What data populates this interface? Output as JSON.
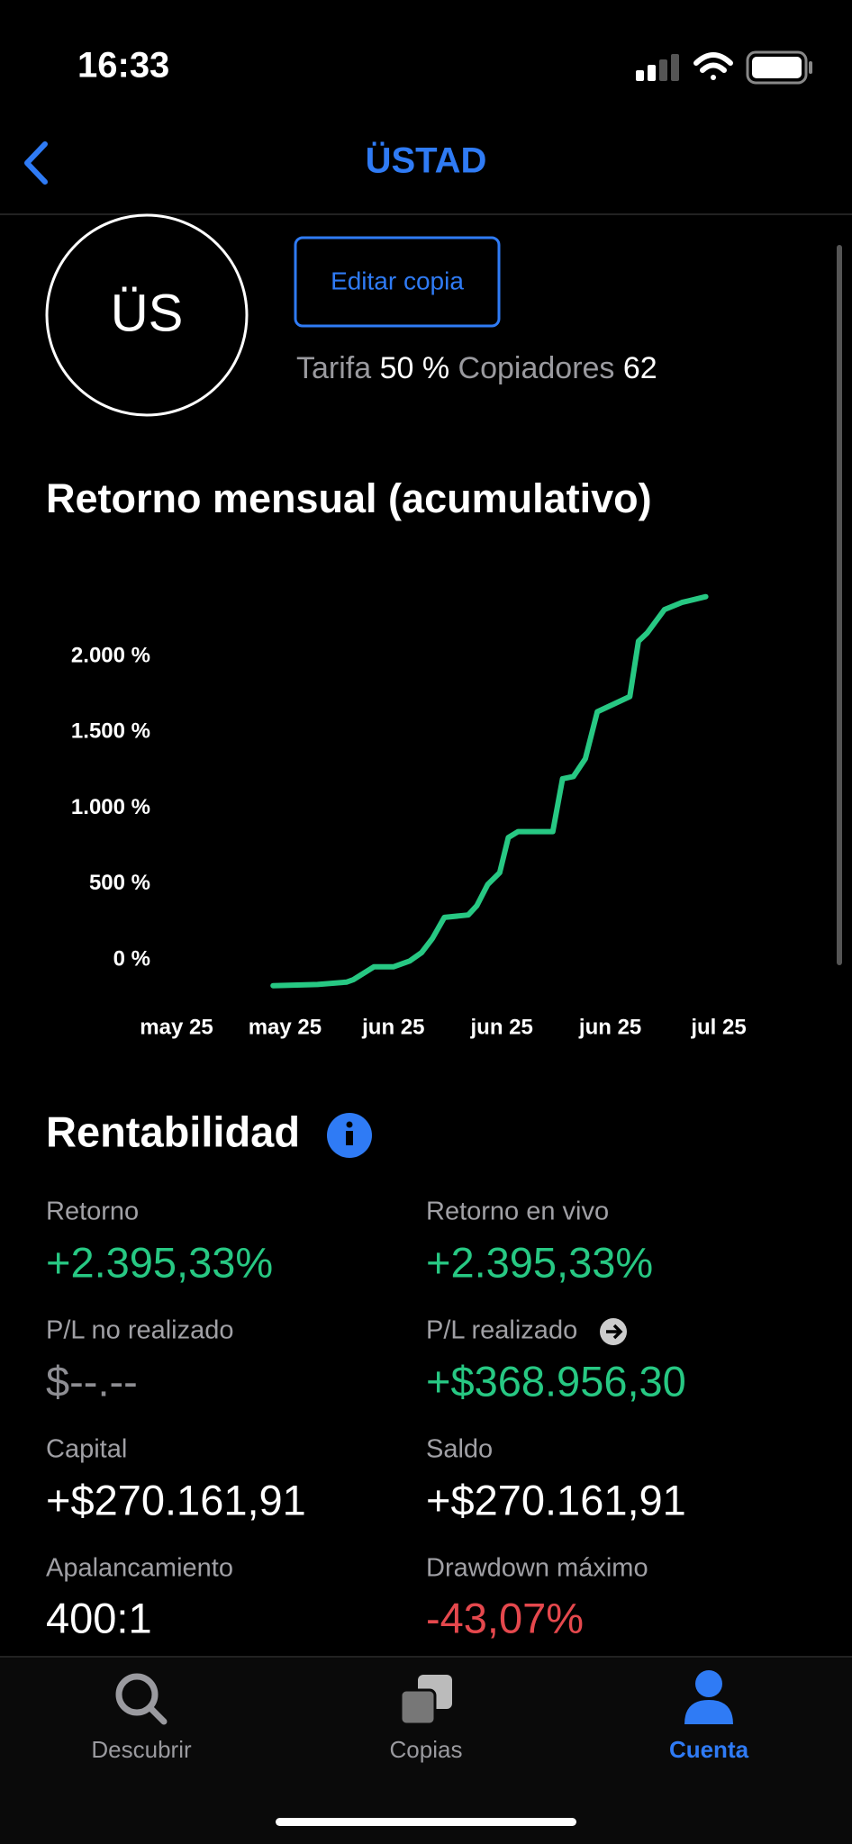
{
  "status_bar": {
    "time": "16:33"
  },
  "header": {
    "title": "ÜSTAD"
  },
  "profile": {
    "initials": "ÜS",
    "button": "Editar copia",
    "fee_label": "Tarifa",
    "fee_value": "50 %",
    "copiers_label": "Copiadores",
    "copiers_value": "62"
  },
  "chart": {
    "type": "line",
    "title": "Retorno mensual (acumulativo)",
    "color": "#27c883",
    "x": [
      0.89,
      1.3,
      1.57,
      1.63,
      1.82,
      2.0,
      2.15,
      2.26,
      2.36,
      2.47,
      2.69,
      2.77,
      2.87,
      2.98,
      3.06,
      3.15,
      3.47,
      3.56,
      3.66,
      3.77,
      3.88,
      4.18,
      4.26,
      4.34,
      4.5,
      4.66,
      4.88
    ],
    "values": [
      -171,
      -163,
      -147,
      -132,
      -47,
      -47,
      -8,
      47,
      140,
      279,
      295,
      357,
      496,
      574,
      806,
      845,
      845,
      1194,
      1209,
      1326,
      1636,
      1736,
      2101,
      2155,
      2310,
      2357,
      2395
    ],
    "xlim": [
      0,
      5
    ],
    "xticks": [
      {
        "value": 0,
        "label": "may 25"
      },
      {
        "value": 1,
        "label": "may 25"
      },
      {
        "value": 2,
        "label": "jun 25"
      },
      {
        "value": 3,
        "label": "jun 25"
      },
      {
        "value": 4,
        "label": "jun 25"
      },
      {
        "value": 5,
        "label": "jul 25"
      }
    ],
    "ylim": [
      -250,
      2500
    ],
    "yticks": [
      {
        "value": 0,
        "label": "0 %"
      },
      {
        "value": 500,
        "label": "500 %"
      },
      {
        "value": 1000,
        "label": "1.000 %"
      },
      {
        "value": 1500,
        "label": "1.500 %"
      },
      {
        "value": 2000,
        "label": "2.000 %"
      }
    ]
  },
  "performance": {
    "title": "Rentabilidad",
    "metrics": [
      {
        "label": "Retorno",
        "value": "+2.395,33%"
      },
      {
        "label": "Retorno en vivo",
        "value": "+2.395,33%"
      },
      {
        "label": "P/L no realizado",
        "value": "$--.--"
      },
      {
        "label": "P/L realizado",
        "value": "+$368.956,30"
      },
      {
        "label": "Capital",
        "value": "+$270.161,91"
      },
      {
        "label": "Saldo",
        "value": "+$270.161,91"
      },
      {
        "label": "Apalancamiento",
        "value": "400:1"
      },
      {
        "label": "Drawdown máximo",
        "value": "-43,07%"
      }
    ]
  },
  "tabs": [
    {
      "label": "Descubrir"
    },
    {
      "label": "Copias"
    },
    {
      "label": "Cuenta"
    }
  ]
}
